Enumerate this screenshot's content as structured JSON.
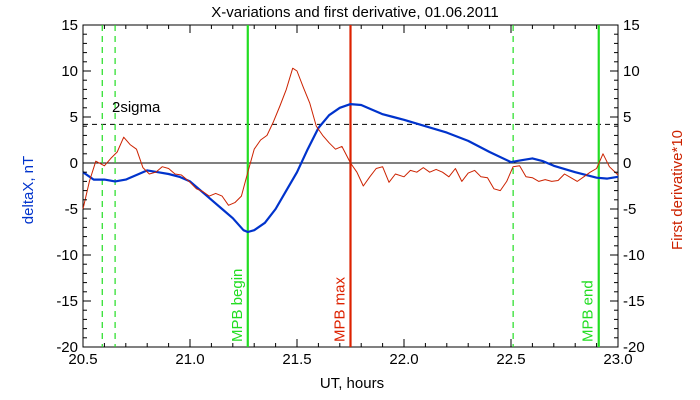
{
  "chart_data": {
    "type": "line",
    "title": "X-variations and first derivative, 01.06.2011",
    "xlabel": "UT, hours",
    "ylabel_left": "deltaX, nT",
    "ylabel_right": "First derivative*10",
    "xlim": [
      20.5,
      23.0
    ],
    "ylim": [
      -20,
      15
    ],
    "x_ticks": [
      "20.5",
      "21.0",
      "21.5",
      "22.0",
      "22.5",
      "23.0"
    ],
    "y_ticks": [
      "15",
      "10",
      "5",
      "0",
      "-5",
      "-10",
      "-15",
      "-20"
    ],
    "threshold": {
      "label": "2sigma",
      "value": 4.2
    },
    "colors": {
      "deltaX": "#0033cc",
      "derivative": "#cc2200",
      "mpb_edges": "#22dd22",
      "mpb_max": "#dd2200",
      "axis": "#000000"
    },
    "markers": [
      {
        "label": "MPB begin",
        "x": 21.27,
        "style": "solid",
        "color": "#22dd22"
      },
      {
        "label": "MPB max",
        "x": 21.75,
        "style": "solid",
        "color": "#dd2200"
      },
      {
        "label": "MPB end",
        "x": 22.91,
        "style": "solid",
        "color": "#22dd22"
      }
    ],
    "dashed_lines": [
      20.59,
      20.65,
      22.51
    ],
    "series": [
      {
        "key": "deltaX",
        "x": [
          20.5,
          20.55,
          20.6,
          20.65,
          20.7,
          20.75,
          20.8,
          20.85,
          20.9,
          20.95,
          21.0,
          21.05,
          21.1,
          21.15,
          21.2,
          21.25,
          21.27,
          21.3,
          21.35,
          21.4,
          21.45,
          21.5,
          21.55,
          21.6,
          21.65,
          21.7,
          21.75,
          21.8,
          21.85,
          21.9,
          21.95,
          22.0,
          22.1,
          22.2,
          22.3,
          22.4,
          22.5,
          22.55,
          22.6,
          22.65,
          22.7,
          22.8,
          22.9,
          22.95,
          23.0
        ],
        "values": [
          -1.0,
          -1.8,
          -1.8,
          -2.0,
          -1.8,
          -1.3,
          -0.8,
          -1.0,
          -1.2,
          -1.5,
          -2.0,
          -3.0,
          -4.0,
          -5.0,
          -6.0,
          -7.3,
          -7.5,
          -7.3,
          -6.5,
          -5.0,
          -3.0,
          -1.0,
          1.5,
          3.8,
          5.2,
          6.0,
          6.4,
          6.3,
          5.8,
          5.3,
          5.0,
          4.7,
          4.0,
          3.3,
          2.4,
          1.2,
          0.1,
          0.3,
          0.5,
          0.2,
          -0.3,
          -1.0,
          -1.6,
          -1.7,
          -1.5
        ]
      },
      {
        "key": "derivative",
        "x": [
          20.5,
          20.53,
          20.56,
          20.6,
          20.63,
          20.66,
          20.69,
          20.72,
          20.75,
          20.78,
          20.81,
          20.84,
          20.87,
          20.9,
          20.93,
          20.96,
          21.0,
          21.03,
          21.06,
          21.09,
          21.12,
          21.15,
          21.18,
          21.21,
          21.24,
          21.27,
          21.3,
          21.33,
          21.36,
          21.39,
          21.42,
          21.45,
          21.48,
          21.5,
          21.53,
          21.56,
          21.59,
          21.62,
          21.65,
          21.68,
          21.71,
          21.75,
          21.78,
          21.81,
          21.84,
          21.87,
          21.9,
          21.93,
          21.96,
          22.0,
          22.03,
          22.06,
          22.09,
          22.12,
          22.15,
          22.18,
          22.21,
          22.24,
          22.27,
          22.3,
          22.33,
          22.36,
          22.39,
          22.42,
          22.45,
          22.48,
          22.51,
          22.54,
          22.57,
          22.6,
          22.63,
          22.66,
          22.69,
          22.72,
          22.75,
          22.78,
          22.81,
          22.84,
          22.87,
          22.9,
          22.93,
          22.96,
          23.0
        ],
        "values": [
          -5.0,
          -2.0,
          0.2,
          -0.3,
          0.5,
          1.2,
          2.8,
          2.0,
          1.5,
          -0.5,
          -1.2,
          -1.0,
          -0.4,
          -0.6,
          -1.2,
          -1.3,
          -2.1,
          -2.8,
          -3.1,
          -3.6,
          -3.3,
          -3.6,
          -4.6,
          -4.3,
          -3.6,
          -1.0,
          1.5,
          2.5,
          3.0,
          4.5,
          6.2,
          8.0,
          10.3,
          10.0,
          8.2,
          6.5,
          4.0,
          3.0,
          2.2,
          1.5,
          1.8,
          0.0,
          -1.0,
          -2.5,
          -1.5,
          -0.6,
          -0.4,
          -2.1,
          -1.2,
          -1.5,
          -0.8,
          -1.0,
          -0.5,
          -1.0,
          -0.7,
          -1.0,
          -1.5,
          -0.6,
          -2.0,
          -1.1,
          -0.8,
          -1.5,
          -1.6,
          -2.8,
          -3.0,
          -2.0,
          -0.4,
          -0.3,
          -1.5,
          -1.6,
          -2.0,
          -1.8,
          -2.0,
          -1.9,
          -1.2,
          -1.6,
          -2.0,
          -1.5,
          -1.0,
          -0.6,
          1.0,
          -0.4,
          -1.3
        ]
      }
    ]
  }
}
